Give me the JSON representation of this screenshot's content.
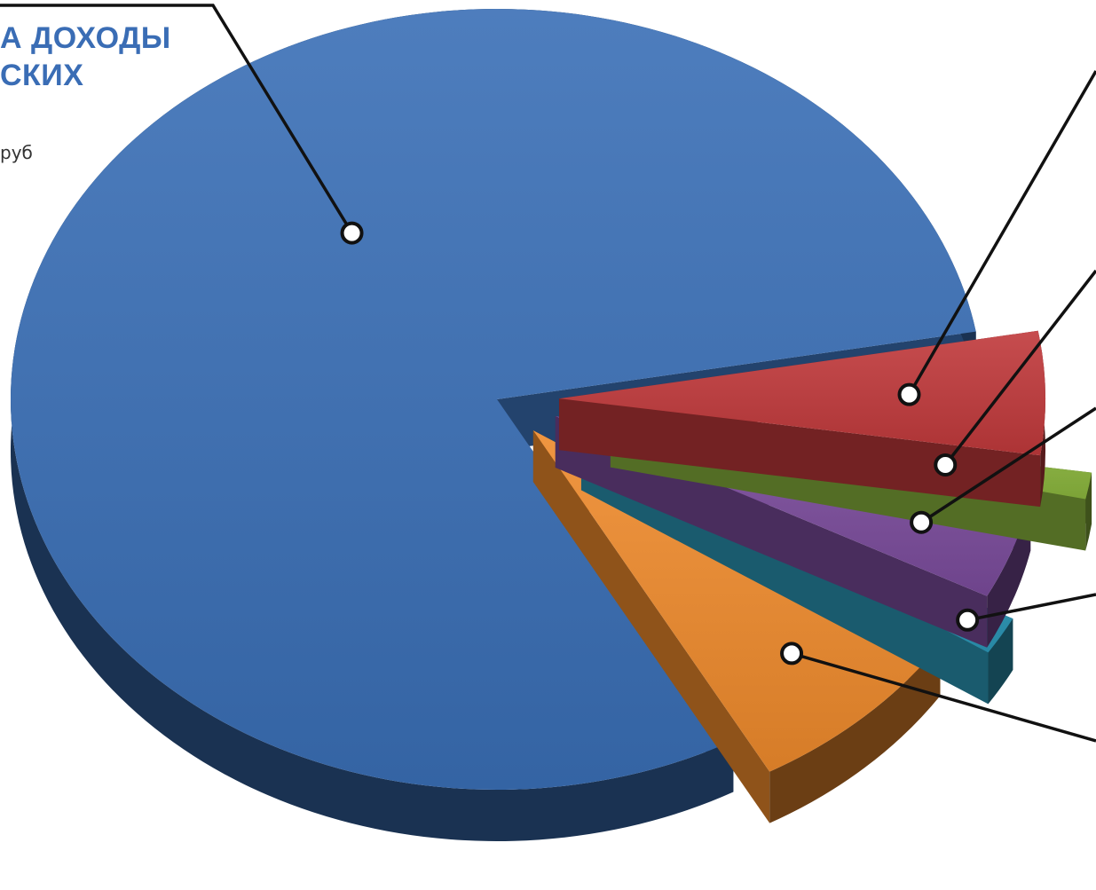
{
  "header": {
    "title": "А ДОХОДЫ\nСКИХ",
    "unit": "руб"
  },
  "chart_data": {
    "type": "pie",
    "style": "3d-exploded",
    "title": "А ДОХОДЫ СКИХ",
    "unit": "руб",
    "legend": "none",
    "slices": [
      {
        "value": 80.3,
        "color": "#3a6fb6"
      },
      {
        "value": 5.1,
        "color": "#c0393b"
      },
      {
        "value": 1.1,
        "color": "#8ab53d"
      },
      {
        "value": 4.2,
        "color": "#7a4b9b"
      },
      {
        "value": 1.6,
        "color": "#2c97b7"
      },
      {
        "value": 7.7,
        "color": "#ee8a2c"
      }
    ]
  }
}
